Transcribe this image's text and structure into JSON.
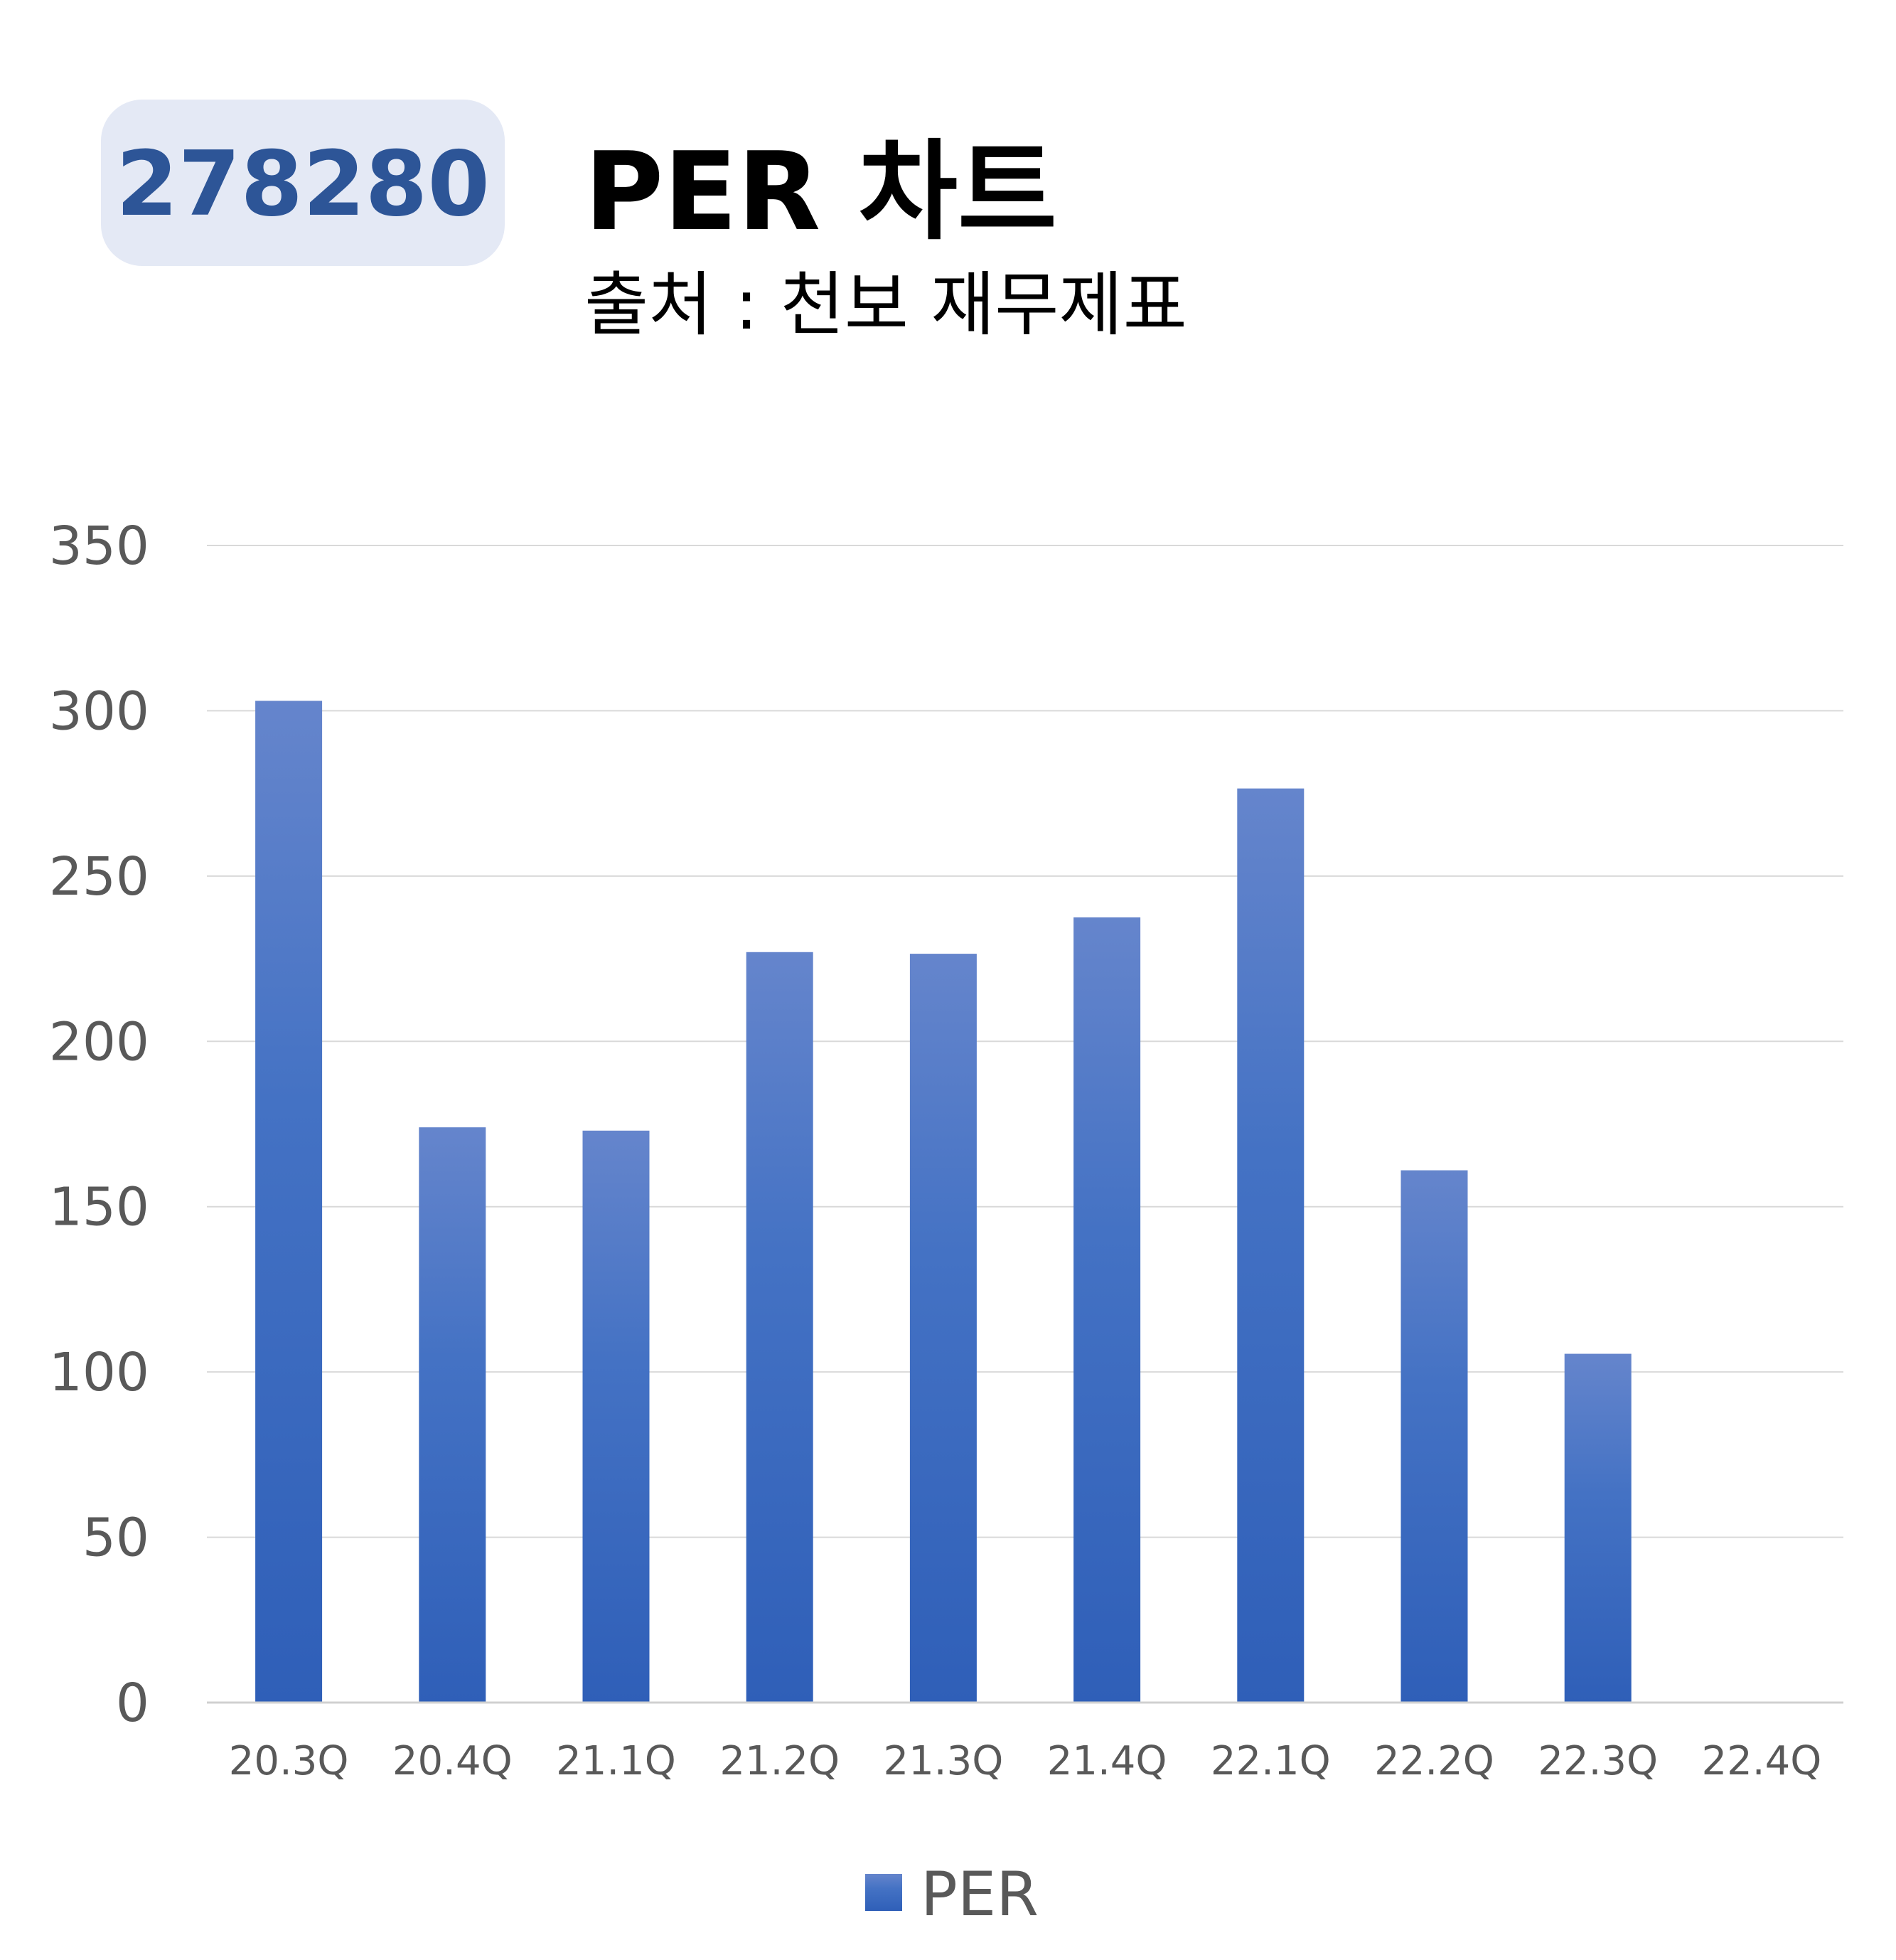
{
  "badge": {
    "code": "278280"
  },
  "header": {
    "title": "PER 차트",
    "source": "출처 : 천보 재무제표"
  },
  "colors": {
    "bar_top": "#6585cc",
    "bar_mid": "#4472c4",
    "bar_bottom": "#2f5fb8",
    "badge_bg": "#e4e9f5",
    "badge_text": "#2d5597"
  },
  "chart_data": {
    "type": "bar",
    "categories": [
      "20.3Q",
      "20.4Q",
      "21.1Q",
      "21.2Q",
      "21.3Q",
      "21.4Q",
      "22.1Q",
      "22.2Q",
      "22.3Q",
      "22.4Q"
    ],
    "series": [
      {
        "name": "PER",
        "values": [
          303,
          174,
          173,
          227,
          226.5,
          237.5,
          276.5,
          161,
          105.5,
          null
        ]
      }
    ],
    "ylim": [
      0,
      350
    ],
    "yticks": [
      0,
      50,
      100,
      150,
      200,
      250,
      300,
      350
    ],
    "grid": true,
    "legend": "bottom"
  }
}
